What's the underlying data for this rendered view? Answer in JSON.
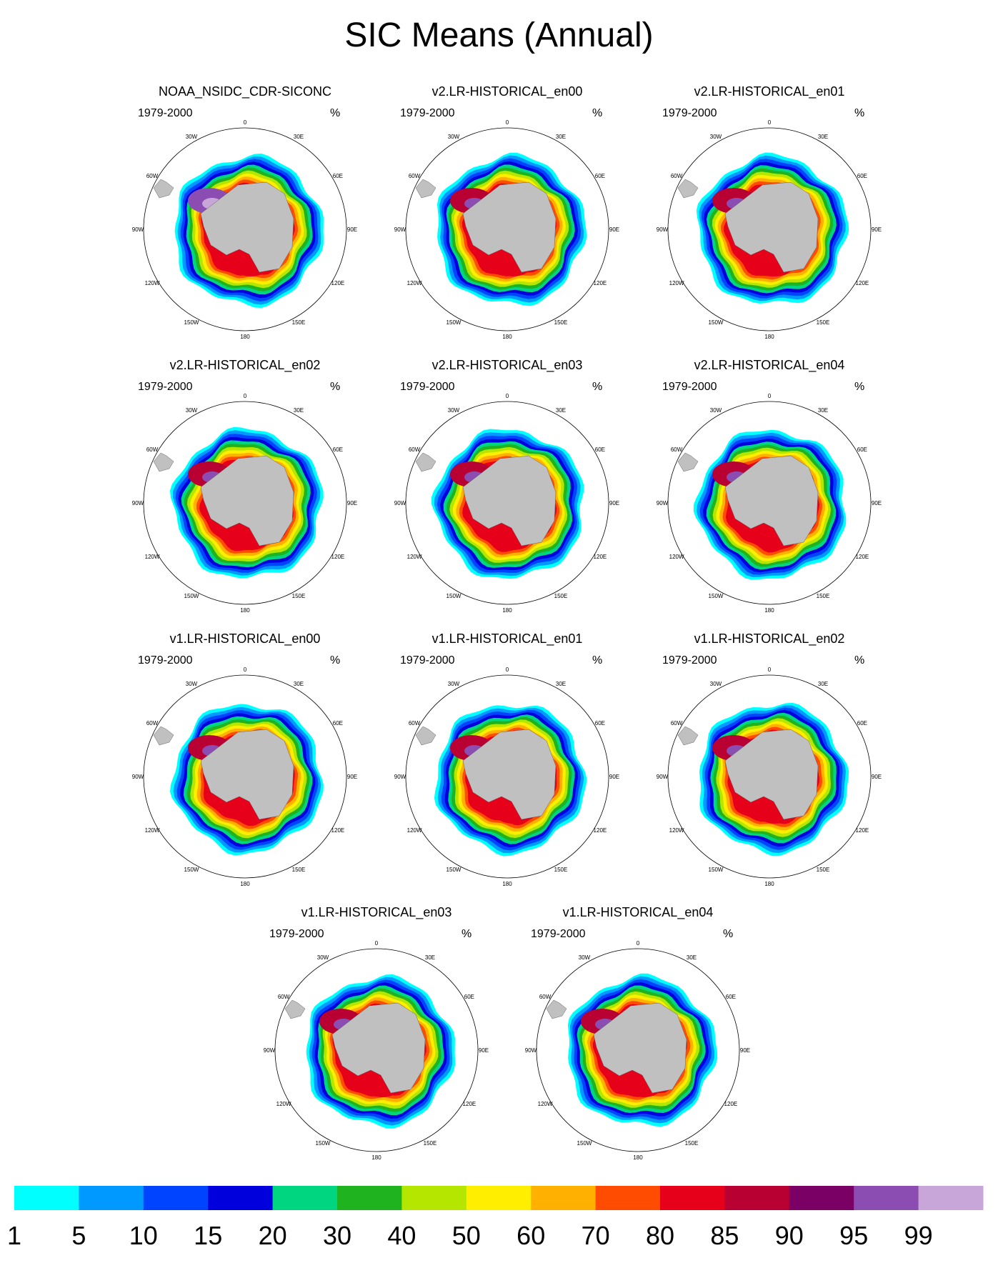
{
  "figure": {
    "title": "SIC Means (Annual)"
  },
  "chart_data": {
    "type": "heatmap",
    "title": "SIC Means (Annual)",
    "variable": "Sea ice concentration",
    "units": "%",
    "period": "1979-2000",
    "projection": "south polar stereographic",
    "longitude_labels": [
      "0",
      "30E",
      "60E",
      "90E",
      "120E",
      "150E",
      "180",
      "150W",
      "120W",
      "90W",
      "60W",
      "30W"
    ],
    "panels": [
      {
        "title": "NOAA_NSIDC_CDR-SICONC",
        "period": "1979-2000",
        "units": "%"
      },
      {
        "title": "v2.LR-HISTORICAL_en00",
        "period": "1979-2000",
        "units": "%"
      },
      {
        "title": "v2.LR-HISTORICAL_en01",
        "period": "1979-2000",
        "units": "%"
      },
      {
        "title": "v2.LR-HISTORICAL_en02",
        "period": "1979-2000",
        "units": "%"
      },
      {
        "title": "v2.LR-HISTORICAL_en03",
        "period": "1979-2000",
        "units": "%"
      },
      {
        "title": "v2.LR-HISTORICAL_en04",
        "period": "1979-2000",
        "units": "%"
      },
      {
        "title": "v1.LR-HISTORICAL_en00",
        "period": "1979-2000",
        "units": "%"
      },
      {
        "title": "v1.LR-HISTORICAL_en01",
        "period": "1979-2000",
        "units": "%"
      },
      {
        "title": "v1.LR-HISTORICAL_en02",
        "period": "1979-2000",
        "units": "%"
      },
      {
        "title": "v1.LR-HISTORICAL_en03",
        "period": "1979-2000",
        "units": "%"
      },
      {
        "title": "v1.LR-HISTORICAL_en04",
        "period": "1979-2000",
        "units": "%"
      }
    ],
    "colorbar": {
      "levels": [
        "1",
        "5",
        "10",
        "15",
        "20",
        "30",
        "40",
        "50",
        "60",
        "70",
        "80",
        "85",
        "90",
        "95",
        "99"
      ],
      "colors": [
        "#00ffff",
        "#0099ff",
        "#0044ff",
        "#0000dd",
        "#00d67f",
        "#1fb31f",
        "#b4e600",
        "#ffee00",
        "#ffb000",
        "#ff4c00",
        "#e6001a",
        "#b80033",
        "#7a0066",
        "#8c4db3",
        "#c9a6d9"
      ]
    }
  }
}
